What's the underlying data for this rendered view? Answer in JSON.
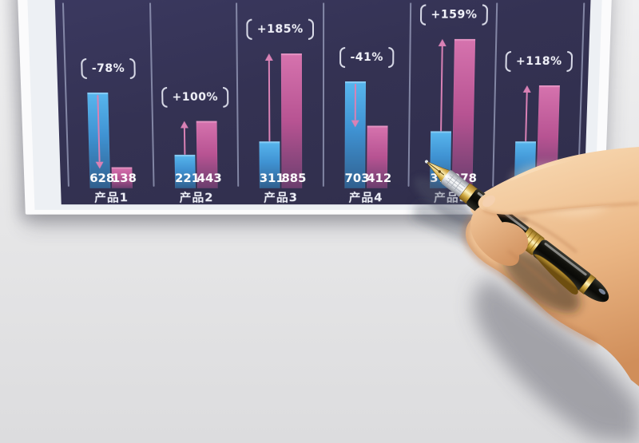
{
  "scene": {
    "background": "#e7e7e9",
    "card": {
      "outer_color": "#fbfbfc",
      "margin_color": "#edf0f4",
      "chart_bg": "#343253"
    },
    "photo_objects": {
      "hand": "right-hand-holding-fountain-pen",
      "pen": "black-barrel-gold-trim-fountain-pen"
    }
  },
  "chart_data": {
    "type": "bar",
    "title": "",
    "categories": [
      "产品1",
      "产品2",
      "产品3",
      "产品4",
      "产品5",
      ""
    ],
    "series": [
      {
        "name": "series-blue",
        "color_top": "#4fb0ea",
        "color_bottom": "#2e5a8c",
        "values": [
          628,
          221,
          311,
          703,
          378,
          310
        ]
      },
      {
        "name": "series-pink",
        "color_top": "#d4699f",
        "color_bottom": "#6b3e6e",
        "values": [
          138,
          443,
          885,
          412,
          978,
          676
        ]
      }
    ],
    "value_labels": [
      [
        "628",
        "138"
      ],
      [
        "221",
        "443"
      ],
      [
        "311",
        "885"
      ],
      [
        "703",
        "412"
      ],
      [
        "378",
        "978"
      ],
      [
        "",
        ""
      ]
    ],
    "change_labels": [
      "-78%",
      "+100%",
      "+185%",
      "-41%",
      "+159%",
      "+118%"
    ],
    "arrow_directions": [
      "down",
      "up",
      "up",
      "down",
      "up",
      "up"
    ],
    "arrow_color": "#d981b5",
    "legend": "none",
    "grid": "vertical-dividers-between-groups",
    "ylim": [
      0,
      1100
    ],
    "occlusion_note": "6th category label and its two value labels are hidden behind the hand; 6th bar values estimated from bar heights"
  }
}
